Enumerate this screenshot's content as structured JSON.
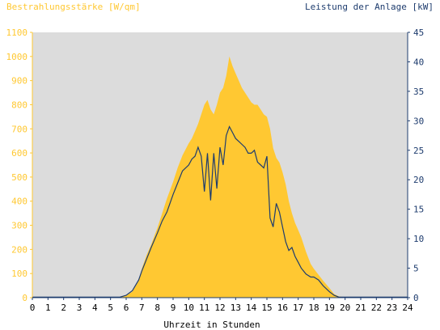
{
  "chart_data": {
    "type": "area",
    "title": "",
    "xlabel": "Uhrzeit in Stunden",
    "ylabel_left": "Bestrahlungsstärke [W/qm]",
    "ylabel_right": "Leistung der Anlage [kW]",
    "xlim": [
      0,
      24
    ],
    "ylim_left": [
      0,
      1100
    ],
    "ylim_right": [
      0,
      45
    ],
    "x_ticks": [
      "0",
      "1",
      "2",
      "3",
      "4",
      "5",
      "6",
      "7",
      "8",
      "9",
      "10",
      "11",
      "12",
      "13",
      "14",
      "15",
      "16",
      "17",
      "18",
      "19",
      "20",
      "21",
      "22",
      "23",
      "24"
    ],
    "y_ticks_left": [
      "0",
      "100",
      "200",
      "300",
      "400",
      "500",
      "600",
      "700",
      "800",
      "900",
      "1000",
      "1100"
    ],
    "y_ticks_right": [
      "0",
      "5",
      "10",
      "15",
      "20",
      "25",
      "30",
      "35",
      "40",
      "45"
    ],
    "grid": false,
    "colors": {
      "irradiance": "#ffc832",
      "power": "#1e3c6e",
      "plot_bg": "#dcdcdc"
    },
    "series": [
      {
        "name": "Bestrahlungsstärke [W/qm]",
        "axis": "left",
        "style": "area",
        "x": [
          0,
          5.6,
          6.0,
          6.4,
          6.8,
          7.0,
          7.3,
          7.6,
          8.0,
          8.3,
          8.6,
          9.0,
          9.3,
          9.6,
          10.0,
          10.2,
          10.4,
          10.6,
          10.8,
          11.0,
          11.2,
          11.4,
          11.6,
          11.8,
          12.0,
          12.2,
          12.4,
          12.6,
          12.8,
          13.0,
          13.2,
          13.4,
          13.6,
          13.8,
          14.0,
          14.2,
          14.4,
          14.6,
          14.8,
          15.0,
          15.2,
          15.4,
          15.6,
          15.8,
          16.0,
          16.2,
          16.4,
          16.6,
          16.8,
          17.0,
          17.2,
          17.5,
          17.8,
          18.0,
          18.3,
          18.6,
          19.0,
          19.3,
          19.6,
          20.0,
          24.0
        ],
        "y": [
          2,
          2,
          8,
          25,
          70,
          120,
          175,
          220,
          290,
          350,
          410,
          480,
          540,
          590,
          640,
          660,
          690,
          720,
          760,
          800,
          820,
          780,
          760,
          800,
          850,
          870,
          920,
          1000,
          960,
          930,
          900,
          870,
          850,
          830,
          810,
          800,
          800,
          780,
          760,
          750,
          700,
          620,
          580,
          560,
          520,
          470,
          400,
          350,
          310,
          280,
          250,
          190,
          140,
          120,
          95,
          70,
          40,
          15,
          5,
          2,
          2
        ]
      },
      {
        "name": "Leistung der Anlage [kW]",
        "axis": "right",
        "style": "line",
        "x": [
          0,
          5.6,
          6.0,
          6.4,
          6.8,
          7.0,
          7.3,
          7.6,
          8.0,
          8.3,
          8.6,
          9.0,
          9.3,
          9.6,
          10.0,
          10.2,
          10.4,
          10.6,
          10.8,
          11.0,
          11.2,
          11.4,
          11.6,
          11.8,
          12.0,
          12.2,
          12.4,
          12.6,
          12.8,
          13.0,
          13.2,
          13.4,
          13.6,
          13.8,
          14.0,
          14.2,
          14.4,
          14.6,
          14.8,
          15.0,
          15.2,
          15.4,
          15.6,
          15.8,
          16.0,
          16.2,
          16.4,
          16.6,
          16.8,
          17.0,
          17.2,
          17.5,
          17.8,
          18.0,
          18.3,
          18.6,
          19.0,
          19.3,
          19.6,
          20.0,
          24.0
        ],
        "y": [
          0.1,
          0.1,
          0.4,
          1.2,
          3.0,
          4.5,
          6.5,
          8.5,
          11.0,
          13.0,
          14.5,
          17.5,
          19.5,
          21.5,
          22.5,
          23.5,
          24.0,
          25.5,
          24.0,
          18.0,
          24.5,
          16.5,
          24.5,
          18.5,
          25.5,
          22.5,
          27.5,
          29.0,
          28.0,
          27.0,
          26.5,
          26.0,
          25.5,
          24.5,
          24.5,
          25.0,
          23.0,
          22.5,
          22.0,
          24.0,
          13.5,
          12.0,
          16.0,
          14.5,
          12.0,
          9.5,
          8.0,
          8.5,
          7.0,
          6.0,
          5.0,
          4.0,
          3.5,
          3.5,
          3.0,
          2.0,
          1.0,
          0.4,
          0.1,
          0.1,
          0.1
        ]
      }
    ]
  }
}
